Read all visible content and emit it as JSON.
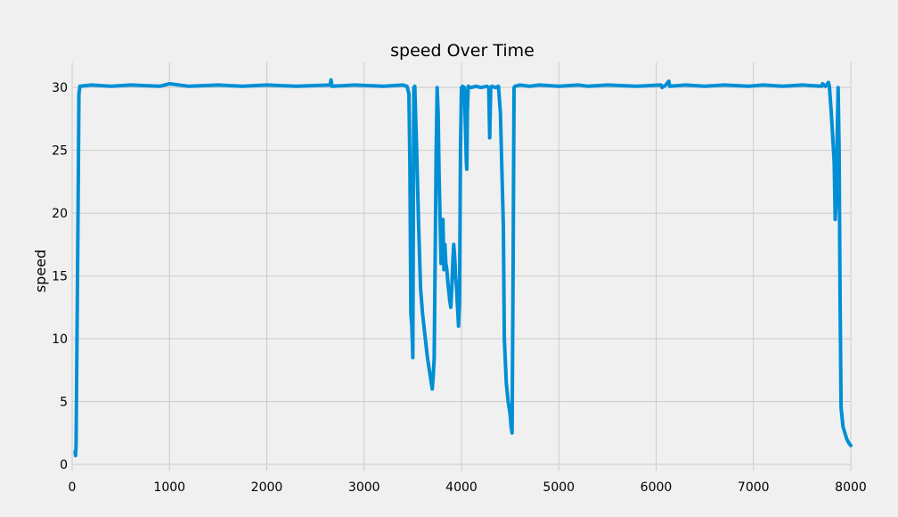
{
  "chart_data": {
    "type": "line",
    "title": "speed Over Time",
    "xlabel": "",
    "ylabel": "speed",
    "xlim": [
      0,
      8000
    ],
    "ylim": [
      -0.5,
      32.0
    ],
    "x_ticks": [
      0,
      1000,
      2000,
      3000,
      4000,
      5000,
      6000,
      7000,
      8000
    ],
    "x_tick_labels": [
      "0",
      "1000",
      "2000",
      "3000",
      "4000",
      "5000",
      "6000",
      "7000",
      "8000"
    ],
    "y_ticks": [
      0,
      5,
      10,
      15,
      20,
      25,
      30
    ],
    "y_tick_labels": [
      "0",
      "5",
      "10",
      "15",
      "20",
      "25",
      "30"
    ],
    "grid": true,
    "colors": {
      "line": "#008fd5",
      "background": "#f0f0f0",
      "grid": "#cbcbcb"
    },
    "series": [
      {
        "x": [
          30,
          35,
          40,
          60,
          70,
          80,
          200,
          400,
          600,
          900,
          1000,
          1200,
          1500,
          1750,
          2000,
          2300,
          2650,
          2660,
          2670,
          2900,
          3200,
          3400,
          3440,
          3460,
          3470,
          3480,
          3490,
          3500,
          3510,
          3520,
          3540,
          3560,
          3580,
          3600,
          3650,
          3700,
          3710,
          3720,
          3740,
          3750,
          3760,
          3770,
          3790,
          3810,
          3820,
          3830,
          3840,
          3850,
          3860,
          3880,
          3890,
          3900,
          3910,
          3920,
          3930,
          3940,
          3950,
          3960,
          3970,
          3980,
          3990,
          4000,
          4010,
          4030,
          4050,
          4055,
          4060,
          4070,
          4100,
          4150,
          4200,
          4260,
          4280,
          4290,
          4300,
          4310,
          4350,
          4380,
          4400,
          4420,
          4430,
          4440,
          4460,
          4480,
          4500,
          4510,
          4520,
          4530,
          4540,
          4550,
          4600,
          4700,
          4800,
          5000,
          5200,
          5300,
          5500,
          5800,
          6050,
          6060,
          6100,
          6130,
          6140,
          6300,
          6500,
          6700,
          6950,
          7100,
          7300,
          7500,
          7700,
          7710,
          7740,
          7770,
          7780,
          7800,
          7830,
          7840,
          7850,
          7860,
          7870,
          7880,
          7890,
          7900,
          7920,
          7940,
          7960,
          7980,
          8000
        ],
        "y": [
          1.0,
          0.7,
          1.5,
          20.0,
          29.5,
          30.1,
          30.2,
          30.1,
          30.2,
          30.1,
          30.3,
          30.1,
          30.2,
          30.1,
          30.2,
          30.1,
          30.2,
          30.6,
          30.1,
          30.2,
          30.1,
          30.2,
          30.1,
          29.5,
          24.0,
          12.0,
          11.0,
          8.5,
          30.0,
          30.1,
          25.0,
          19.0,
          14.0,
          12.0,
          8.5,
          6.0,
          7.0,
          8.5,
          25.0,
          30.0,
          28.0,
          23.0,
          16.0,
          19.5,
          15.5,
          17.5,
          16.0,
          15.5,
          14.5,
          13.0,
          12.5,
          14.0,
          16.0,
          17.5,
          16.5,
          15.0,
          14.0,
          12.5,
          11.0,
          13.0,
          25.0,
          30.0,
          30.1,
          30.0,
          24.0,
          23.5,
          28.0,
          30.1,
          30.0,
          30.1,
          30.0,
          30.1,
          30.0,
          26.0,
          30.0,
          30.1,
          30.0,
          30.1,
          28.0,
          22.0,
          19.0,
          10.0,
          6.5,
          5.0,
          4.0,
          3.0,
          2.5,
          15.0,
          30.0,
          30.1,
          30.2,
          30.1,
          30.2,
          30.1,
          30.2,
          30.1,
          30.2,
          30.1,
          30.2,
          30.0,
          30.2,
          30.5,
          30.1,
          30.2,
          30.1,
          30.2,
          30.1,
          30.2,
          30.1,
          30.2,
          30.1,
          30.3,
          30.1,
          30.4,
          30.1,
          28.0,
          24.0,
          19.5,
          21.0,
          26.0,
          30.0,
          25.0,
          13.0,
          4.5,
          3.0,
          2.5,
          2.0,
          1.7,
          1.5
        ]
      }
    ]
  }
}
